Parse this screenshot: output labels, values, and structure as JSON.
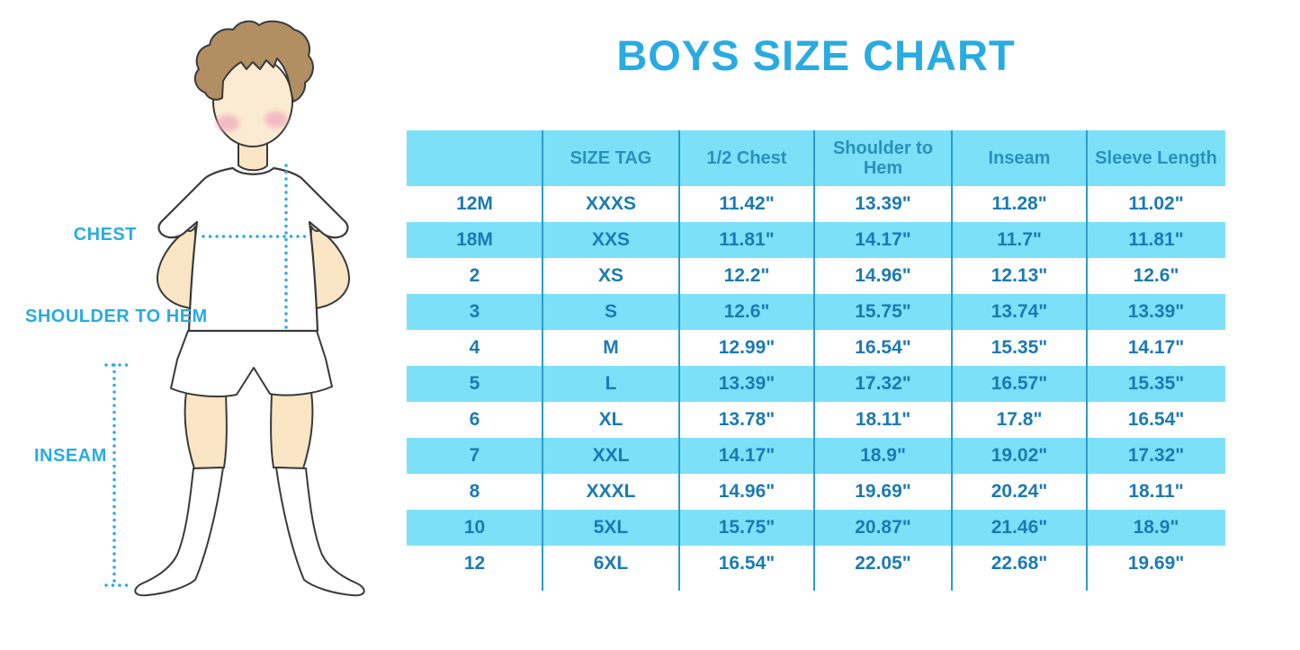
{
  "title": "BOYS SIZE CHART",
  "figure": {
    "chest_label": "CHEST",
    "shoulder_to_hem_label": "SHOULDER TO HEM",
    "inseam_label": "INSEAM"
  },
  "chart_data": {
    "type": "table",
    "title": "BOYS SIZE CHART",
    "columns": [
      "",
      "SIZE TAG",
      "1/2 Chest",
      "Shoulder to Hem",
      "Inseam",
      "Sleeve Length"
    ],
    "rows": [
      [
        "12M",
        "XXXS",
        "11.42\"",
        "13.39\"",
        "11.28\"",
        "11.02\""
      ],
      [
        "18M",
        "XXS",
        "11.81\"",
        "14.17\"",
        "11.7\"",
        "11.81\""
      ],
      [
        "2",
        "XS",
        "12.2\"",
        "14.96\"",
        "12.13\"",
        "12.6\""
      ],
      [
        "3",
        "S",
        "12.6\"",
        "15.75\"",
        "13.74\"",
        "13.39\""
      ],
      [
        "4",
        "M",
        "12.99\"",
        "16.54\"",
        "15.35\"",
        "14.17\""
      ],
      [
        "5",
        "L",
        "13.39\"",
        "17.32\"",
        "16.57\"",
        "15.35\""
      ],
      [
        "6",
        "XL",
        "13.78\"",
        "18.11\"",
        "17.8\"",
        "16.54\""
      ],
      [
        "7",
        "XXL",
        "14.17\"",
        "18.9\"",
        "19.02\"",
        "17.32\""
      ],
      [
        "8",
        "XXXL",
        "14.96\"",
        "19.69\"",
        "20.24\"",
        "18.11\""
      ],
      [
        "10",
        "5XL",
        "15.75\"",
        "20.87\"",
        "21.46\"",
        "18.9\""
      ],
      [
        "12",
        "6XL",
        "16.54\"",
        "22.05\"",
        "22.68\"",
        "19.69\""
      ]
    ],
    "row_striping": "header cyan, then alternating white/cyan starting with white",
    "legend_position": "none",
    "grid": "vertical lines only"
  },
  "colors": {
    "accent_blue": "#29ABE2",
    "row_cyan": "#7CE1F8",
    "grid_line": "#2A9CCB",
    "cell_text": "#1B7AB3",
    "header_text": "#2B90BC",
    "skin": "#FAE6C4",
    "hair": "#B28F63",
    "outline": "#3A3A3A",
    "blush": "#F0AABE"
  }
}
